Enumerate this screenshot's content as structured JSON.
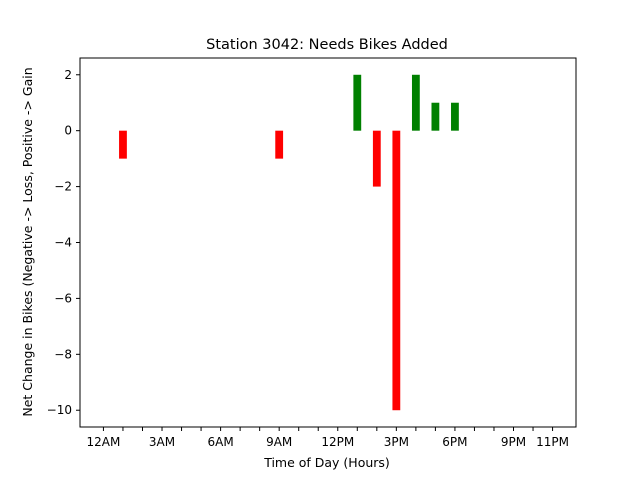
{
  "chart_data": {
    "type": "bar",
    "title": "Station 3042: Needs Bikes Added",
    "xlabel": "Time of Day (Hours)",
    "ylabel": "Net Change in Bikes (Negative -> Loss, Positive -> Gain",
    "xlim": [
      -1.2,
      24.2
    ],
    "ylim": [
      -10.6,
      2.6
    ],
    "x_ticks": [
      {
        "value": 0,
        "label": "12AM"
      },
      {
        "value": 1,
        "label": ""
      },
      {
        "value": 2,
        "label": ""
      },
      {
        "value": 3,
        "label": "3AM"
      },
      {
        "value": 4,
        "label": ""
      },
      {
        "value": 5,
        "label": ""
      },
      {
        "value": 6,
        "label": "6AM"
      },
      {
        "value": 7,
        "label": ""
      },
      {
        "value": 8,
        "label": ""
      },
      {
        "value": 9,
        "label": "9AM"
      },
      {
        "value": 10,
        "label": ""
      },
      {
        "value": 11,
        "label": ""
      },
      {
        "value": 12,
        "label": "12PM"
      },
      {
        "value": 13,
        "label": ""
      },
      {
        "value": 14,
        "label": ""
      },
      {
        "value": 15,
        "label": "3PM"
      },
      {
        "value": 16,
        "label": ""
      },
      {
        "value": 17,
        "label": ""
      },
      {
        "value": 18,
        "label": "6PM"
      },
      {
        "value": 19,
        "label": ""
      },
      {
        "value": 20,
        "label": ""
      },
      {
        "value": 21,
        "label": "9PM"
      },
      {
        "value": 22,
        "label": ""
      },
      {
        "value": 23,
        "label": "11PM"
      }
    ],
    "y_ticks": [
      -10,
      -8,
      -6,
      -4,
      -2,
      0,
      2
    ],
    "bars": [
      {
        "x": 1,
        "value": -1
      },
      {
        "x": 9,
        "value": -1
      },
      {
        "x": 13,
        "value": 2
      },
      {
        "x": 14,
        "value": -2
      },
      {
        "x": 15,
        "value": -10
      },
      {
        "x": 16,
        "value": 2
      },
      {
        "x": 17,
        "value": 1
      },
      {
        "x": 18,
        "value": 1
      }
    ],
    "bar_width": 0.4,
    "colors": {
      "gain": "#008000",
      "loss": "#ff0000"
    },
    "grid": false,
    "legend": "none"
  }
}
